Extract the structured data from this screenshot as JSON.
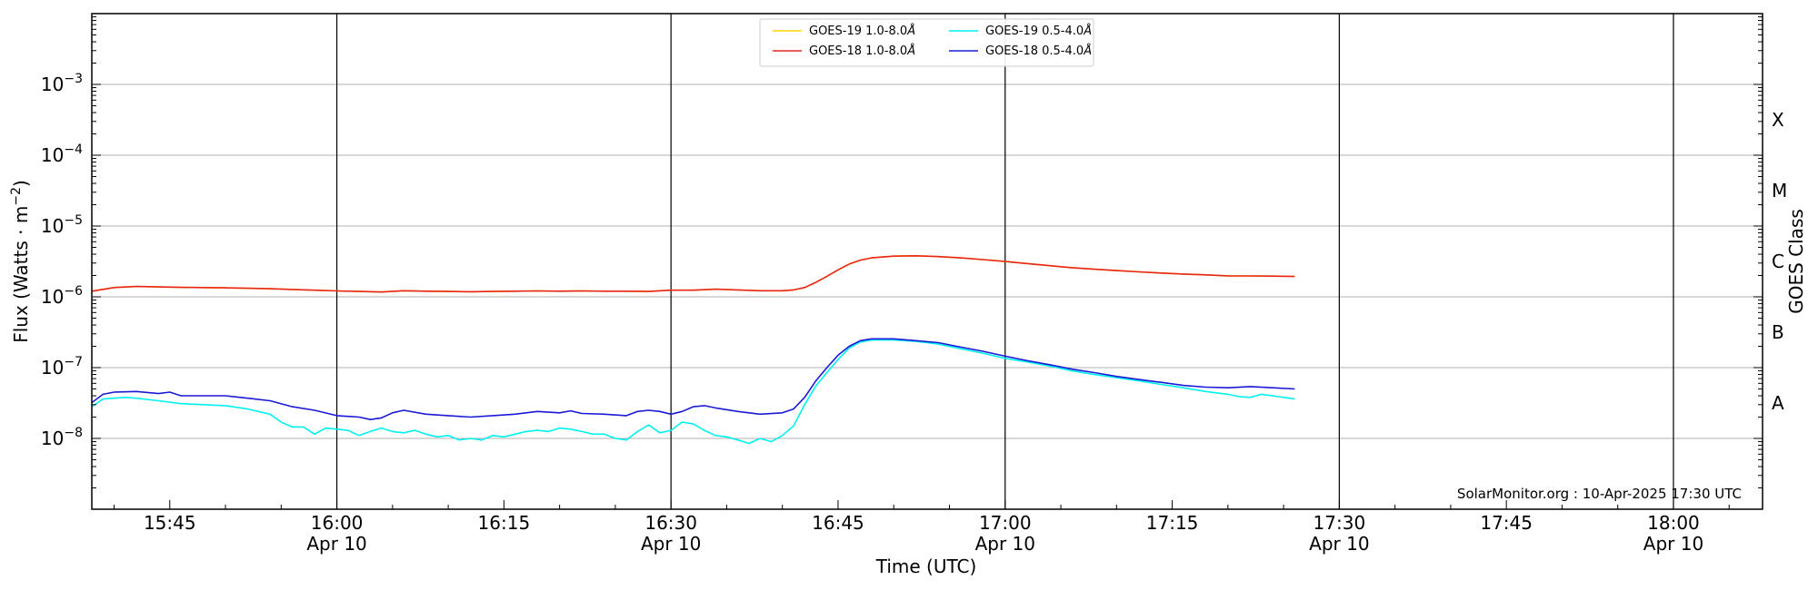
{
  "chart_data": {
    "type": "line",
    "title": "",
    "xlabel": "Time (UTC)",
    "ylabel_main": "Flux (Watts · m",
    "ylabel_sup": "−2",
    "ylabel_close": ")",
    "y2label": "GOES Class",
    "y_scale": "log",
    "ylim": [
      1e-09,
      0.01
    ],
    "xlim": [
      "15:38",
      "18:08"
    ],
    "grid": "horizontal at each decade",
    "legend_position": "top-center",
    "y_ticks": [
      {
        "value": 1e-08,
        "base": "10",
        "exp": "−8"
      },
      {
        "value": 1e-07,
        "base": "10",
        "exp": "−7"
      },
      {
        "value": 1e-06,
        "base": "10",
        "exp": "−6"
      },
      {
        "value": 1e-05,
        "base": "10",
        "exp": "−5"
      },
      {
        "value": 0.0001,
        "base": "10",
        "exp": "−4"
      },
      {
        "value": 0.001,
        "base": "10",
        "exp": "−3"
      }
    ],
    "class_labels": [
      {
        "label": "A",
        "value": 3.16e-08
      },
      {
        "label": "B",
        "value": 3.16e-07
      },
      {
        "label": "C",
        "value": 3.16e-06
      },
      {
        "label": "M",
        "value": 3.16e-05
      },
      {
        "label": "X",
        "value": 0.000316
      }
    ],
    "x_ticks": [
      {
        "time": "15:45",
        "label": "15:45",
        "date": ""
      },
      {
        "time": "16:00",
        "label": "16:00",
        "date": "Apr 10"
      },
      {
        "time": "16:15",
        "label": "16:15",
        "date": ""
      },
      {
        "time": "16:30",
        "label": "16:30",
        "date": "Apr 10"
      },
      {
        "time": "16:45",
        "label": "16:45",
        "date": ""
      },
      {
        "time": "17:00",
        "label": "17:00",
        "date": "Apr 10"
      },
      {
        "time": "17:15",
        "label": "17:15",
        "date": ""
      },
      {
        "time": "17:30",
        "label": "17:30",
        "date": "Apr 10"
      },
      {
        "time": "17:45",
        "label": "17:45",
        "date": ""
      },
      {
        "time": "18:00",
        "label": "18:00",
        "date": "Apr 10"
      }
    ],
    "vertical_lines": [
      "16:00",
      "16:30",
      "17:00",
      "17:30",
      "18:00"
    ],
    "series": [
      {
        "name": "GOES-19 1.0-8.0Å",
        "legend_base": "GOES-19 1.0-8.0",
        "color": "#ffd700",
        "x": [
          "15:38",
          "15:40",
          "15:42",
          "15:44",
          "15:46",
          "15:48",
          "15:50",
          "15:52",
          "15:54",
          "15:56",
          "15:58",
          "16:00",
          "16:02",
          "16:04",
          "16:06",
          "16:08",
          "16:10",
          "16:12",
          "16:14",
          "16:16",
          "16:18",
          "16:20",
          "16:22",
          "16:24",
          "16:26",
          "16:28",
          "16:30",
          "16:32",
          "16:34",
          "16:36",
          "16:38",
          "16:40",
          "16:41",
          "16:42",
          "16:43",
          "16:44",
          "16:45",
          "16:46",
          "16:47",
          "16:48",
          "16:50",
          "16:52",
          "16:54",
          "16:56",
          "16:58",
          "17:00",
          "17:02",
          "17:04",
          "17:06",
          "17:08",
          "17:10",
          "17:12",
          "17:14",
          "17:16",
          "17:18",
          "17:20",
          "17:22",
          "17:24",
          "17:26"
        ],
        "y": [
          1.2e-06,
          1.35e-06,
          1.4e-06,
          1.38e-06,
          1.36e-06,
          1.35e-06,
          1.34e-06,
          1.32e-06,
          1.3e-06,
          1.27e-06,
          1.24e-06,
          1.21e-06,
          1.19e-06,
          1.17e-06,
          1.22e-06,
          1.2e-06,
          1.19e-06,
          1.18e-06,
          1.19e-06,
          1.2e-06,
          1.21e-06,
          1.2e-06,
          1.21e-06,
          1.2e-06,
          1.2e-06,
          1.19e-06,
          1.24e-06,
          1.24e-06,
          1.28e-06,
          1.25e-06,
          1.22e-06,
          1.22e-06,
          1.25e-06,
          1.35e-06,
          1.6e-06,
          1.95e-06,
          2.4e-06,
          2.9e-06,
          3.3e-06,
          3.55e-06,
          3.75e-06,
          3.8e-06,
          3.7e-06,
          3.55e-06,
          3.35e-06,
          3.15e-06,
          2.95e-06,
          2.75e-06,
          2.58e-06,
          2.45e-06,
          2.35e-06,
          2.25e-06,
          2.17e-06,
          2.1e-06,
          2.04e-06,
          1.98e-06,
          1.97e-06,
          1.96e-06,
          1.94e-06
        ]
      },
      {
        "name": "GOES-18 1.0-8.0Å",
        "legend_base": "GOES-18 1.0-8.0",
        "color": "#e8251c",
        "x": [
          "15:38",
          "15:40",
          "15:42",
          "15:44",
          "15:46",
          "15:48",
          "15:50",
          "15:52",
          "15:54",
          "15:56",
          "15:58",
          "16:00",
          "16:02",
          "16:04",
          "16:06",
          "16:08",
          "16:10",
          "16:12",
          "16:14",
          "16:16",
          "16:18",
          "16:20",
          "16:22",
          "16:24",
          "16:26",
          "16:28",
          "16:30",
          "16:32",
          "16:34",
          "16:36",
          "16:38",
          "16:40",
          "16:41",
          "16:42",
          "16:43",
          "16:44",
          "16:45",
          "16:46",
          "16:47",
          "16:48",
          "16:50",
          "16:52",
          "16:54",
          "16:56",
          "16:58",
          "17:00",
          "17:02",
          "17:04",
          "17:06",
          "17:08",
          "17:10",
          "17:12",
          "17:14",
          "17:16",
          "17:18",
          "17:20",
          "17:22",
          "17:24",
          "17:26"
        ],
        "y": [
          1.2e-06,
          1.35e-06,
          1.4e-06,
          1.38e-06,
          1.36e-06,
          1.35e-06,
          1.34e-06,
          1.32e-06,
          1.3e-06,
          1.27e-06,
          1.24e-06,
          1.21e-06,
          1.19e-06,
          1.17e-06,
          1.22e-06,
          1.2e-06,
          1.19e-06,
          1.18e-06,
          1.19e-06,
          1.2e-06,
          1.21e-06,
          1.2e-06,
          1.21e-06,
          1.2e-06,
          1.2e-06,
          1.19e-06,
          1.24e-06,
          1.24e-06,
          1.28e-06,
          1.25e-06,
          1.22e-06,
          1.22e-06,
          1.25e-06,
          1.35e-06,
          1.6e-06,
          1.95e-06,
          2.4e-06,
          2.9e-06,
          3.3e-06,
          3.55e-06,
          3.75e-06,
          3.8e-06,
          3.7e-06,
          3.55e-06,
          3.35e-06,
          3.15e-06,
          2.95e-06,
          2.75e-06,
          2.58e-06,
          2.45e-06,
          2.35e-06,
          2.25e-06,
          2.17e-06,
          2.1e-06,
          2.04e-06,
          1.98e-06,
          1.97e-06,
          1.96e-06,
          1.94e-06
        ]
      },
      {
        "name": "GOES-19 0.5-4.0Å",
        "legend_base": "GOES-19 0.5-4.0",
        "color": "#00f0f0",
        "x": [
          "15:38",
          "15:39",
          "15:40",
          "15:41",
          "15:42",
          "15:44",
          "15:46",
          "15:48",
          "15:50",
          "15:52",
          "15:54",
          "15:55",
          "15:56",
          "15:57",
          "15:58",
          "15:59",
          "16:00",
          "16:01",
          "16:02",
          "16:03",
          "16:04",
          "16:05",
          "16:06",
          "16:07",
          "16:08",
          "16:09",
          "16:10",
          "16:11",
          "16:12",
          "16:13",
          "16:14",
          "16:15",
          "16:16",
          "16:17",
          "16:18",
          "16:19",
          "16:20",
          "16:21",
          "16:22",
          "16:23",
          "16:24",
          "16:25",
          "16:26",
          "16:27",
          "16:28",
          "16:29",
          "16:30",
          "16:31",
          "16:32",
          "16:33",
          "16:34",
          "16:35",
          "16:36",
          "16:37",
          "16:38",
          "16:39",
          "16:40",
          "16:41",
          "16:42",
          "16:43",
          "16:44",
          "16:45",
          "16:46",
          "16:47",
          "16:48",
          "16:50",
          "16:52",
          "16:54",
          "16:56",
          "16:58",
          "17:00",
          "17:02",
          "17:04",
          "17:06",
          "17:08",
          "17:10",
          "17:12",
          "17:14",
          "17:16",
          "17:18",
          "17:20",
          "17:21",
          "17:22",
          "17:23",
          "17:24",
          "17:26"
        ],
        "y": [
          2.8e-08,
          3.6e-08,
          3.7e-08,
          3.8e-08,
          3.7e-08,
          3.4e-08,
          3.1e-08,
          3e-08,
          2.9e-08,
          2.6e-08,
          2.2e-08,
          1.7e-08,
          1.45e-08,
          1.45e-08,
          1.15e-08,
          1.4e-08,
          1.35e-08,
          1.3e-08,
          1.1e-08,
          1.25e-08,
          1.4e-08,
          1.25e-08,
          1.2e-08,
          1.3e-08,
          1.15e-08,
          1.05e-08,
          1.1e-08,
          9.5e-09,
          1e-08,
          9.5e-09,
          1.1e-08,
          1.05e-08,
          1.15e-08,
          1.25e-08,
          1.3e-08,
          1.25e-08,
          1.4e-08,
          1.35e-08,
          1.25e-08,
          1.15e-08,
          1.15e-08,
          1e-08,
          9.5e-09,
          1.25e-08,
          1.55e-08,
          1.2e-08,
          1.3e-08,
          1.7e-08,
          1.6e-08,
          1.3e-08,
          1.1e-08,
          1.05e-08,
          9.5e-09,
          8.5e-09,
          1e-08,
          9e-09,
          1.1e-08,
          1.5e-08,
          3e-08,
          5.5e-08,
          8.5e-08,
          1.3e-07,
          1.9e-07,
          2.3e-07,
          2.45e-07,
          2.45e-07,
          2.35e-07,
          2.15e-07,
          1.85e-07,
          1.6e-07,
          1.35e-07,
          1.2e-07,
          1.05e-07,
          9e-08,
          8e-08,
          7.2e-08,
          6.5e-08,
          5.8e-08,
          5.2e-08,
          4.6e-08,
          4.2e-08,
          3.9e-08,
          3.8e-08,
          4.2e-08,
          4e-08,
          3.6e-08
        ]
      },
      {
        "name": "GOES-18 0.5-4.0Å",
        "legend_base": "GOES-18 0.5-4.0",
        "color": "#1a1ad6",
        "x": [
          "15:38",
          "15:39",
          "15:40",
          "15:42",
          "15:44",
          "15:45",
          "15:46",
          "15:48",
          "15:50",
          "15:52",
          "15:54",
          "15:56",
          "15:58",
          "16:00",
          "16:02",
          "16:03",
          "16:04",
          "16:05",
          "16:06",
          "16:08",
          "16:10",
          "16:12",
          "16:14",
          "16:16",
          "16:18",
          "16:20",
          "16:21",
          "16:22",
          "16:24",
          "16:26",
          "16:27",
          "16:28",
          "16:29",
          "16:30",
          "16:31",
          "16:32",
          "16:33",
          "16:34",
          "16:36",
          "16:37",
          "16:38",
          "16:40",
          "16:41",
          "16:42",
          "16:43",
          "16:44",
          "16:45",
          "16:46",
          "16:47",
          "16:48",
          "16:50",
          "16:52",
          "16:54",
          "16:56",
          "16:58",
          "17:00",
          "17:02",
          "17:04",
          "17:06",
          "17:08",
          "17:10",
          "17:12",
          "17:14",
          "17:16",
          "17:18",
          "17:20",
          "17:22",
          "17:24",
          "17:26"
        ],
        "y": [
          3.2e-08,
          4.2e-08,
          4.5e-08,
          4.6e-08,
          4.3e-08,
          4.5e-08,
          4e-08,
          4e-08,
          4e-08,
          3.7e-08,
          3.4e-08,
          2.8e-08,
          2.5e-08,
          2.1e-08,
          2e-08,
          1.85e-08,
          1.95e-08,
          2.3e-08,
          2.5e-08,
          2.2e-08,
          2.1e-08,
          2e-08,
          2.1e-08,
          2.2e-08,
          2.4e-08,
          2.3e-08,
          2.45e-08,
          2.25e-08,
          2.2e-08,
          2.1e-08,
          2.4e-08,
          2.5e-08,
          2.4e-08,
          2.2e-08,
          2.4e-08,
          2.8e-08,
          2.9e-08,
          2.7e-08,
          2.4e-08,
          2.3e-08,
          2.2e-08,
          2.3e-08,
          2.6e-08,
          3.8e-08,
          6.5e-08,
          1e-07,
          1.5e-07,
          2e-07,
          2.4e-07,
          2.55e-07,
          2.55e-07,
          2.4e-07,
          2.25e-07,
          1.95e-07,
          1.7e-07,
          1.45e-07,
          1.25e-07,
          1.1e-07,
          9.5e-08,
          8.5e-08,
          7.5e-08,
          6.8e-08,
          6.2e-08,
          5.6e-08,
          5.3e-08,
          5.2e-08,
          5.4e-08,
          5.2e-08,
          5e-08
        ]
      }
    ],
    "credit": "SolarMonitor.org : 10-Apr-2025 17:30 UTC"
  }
}
